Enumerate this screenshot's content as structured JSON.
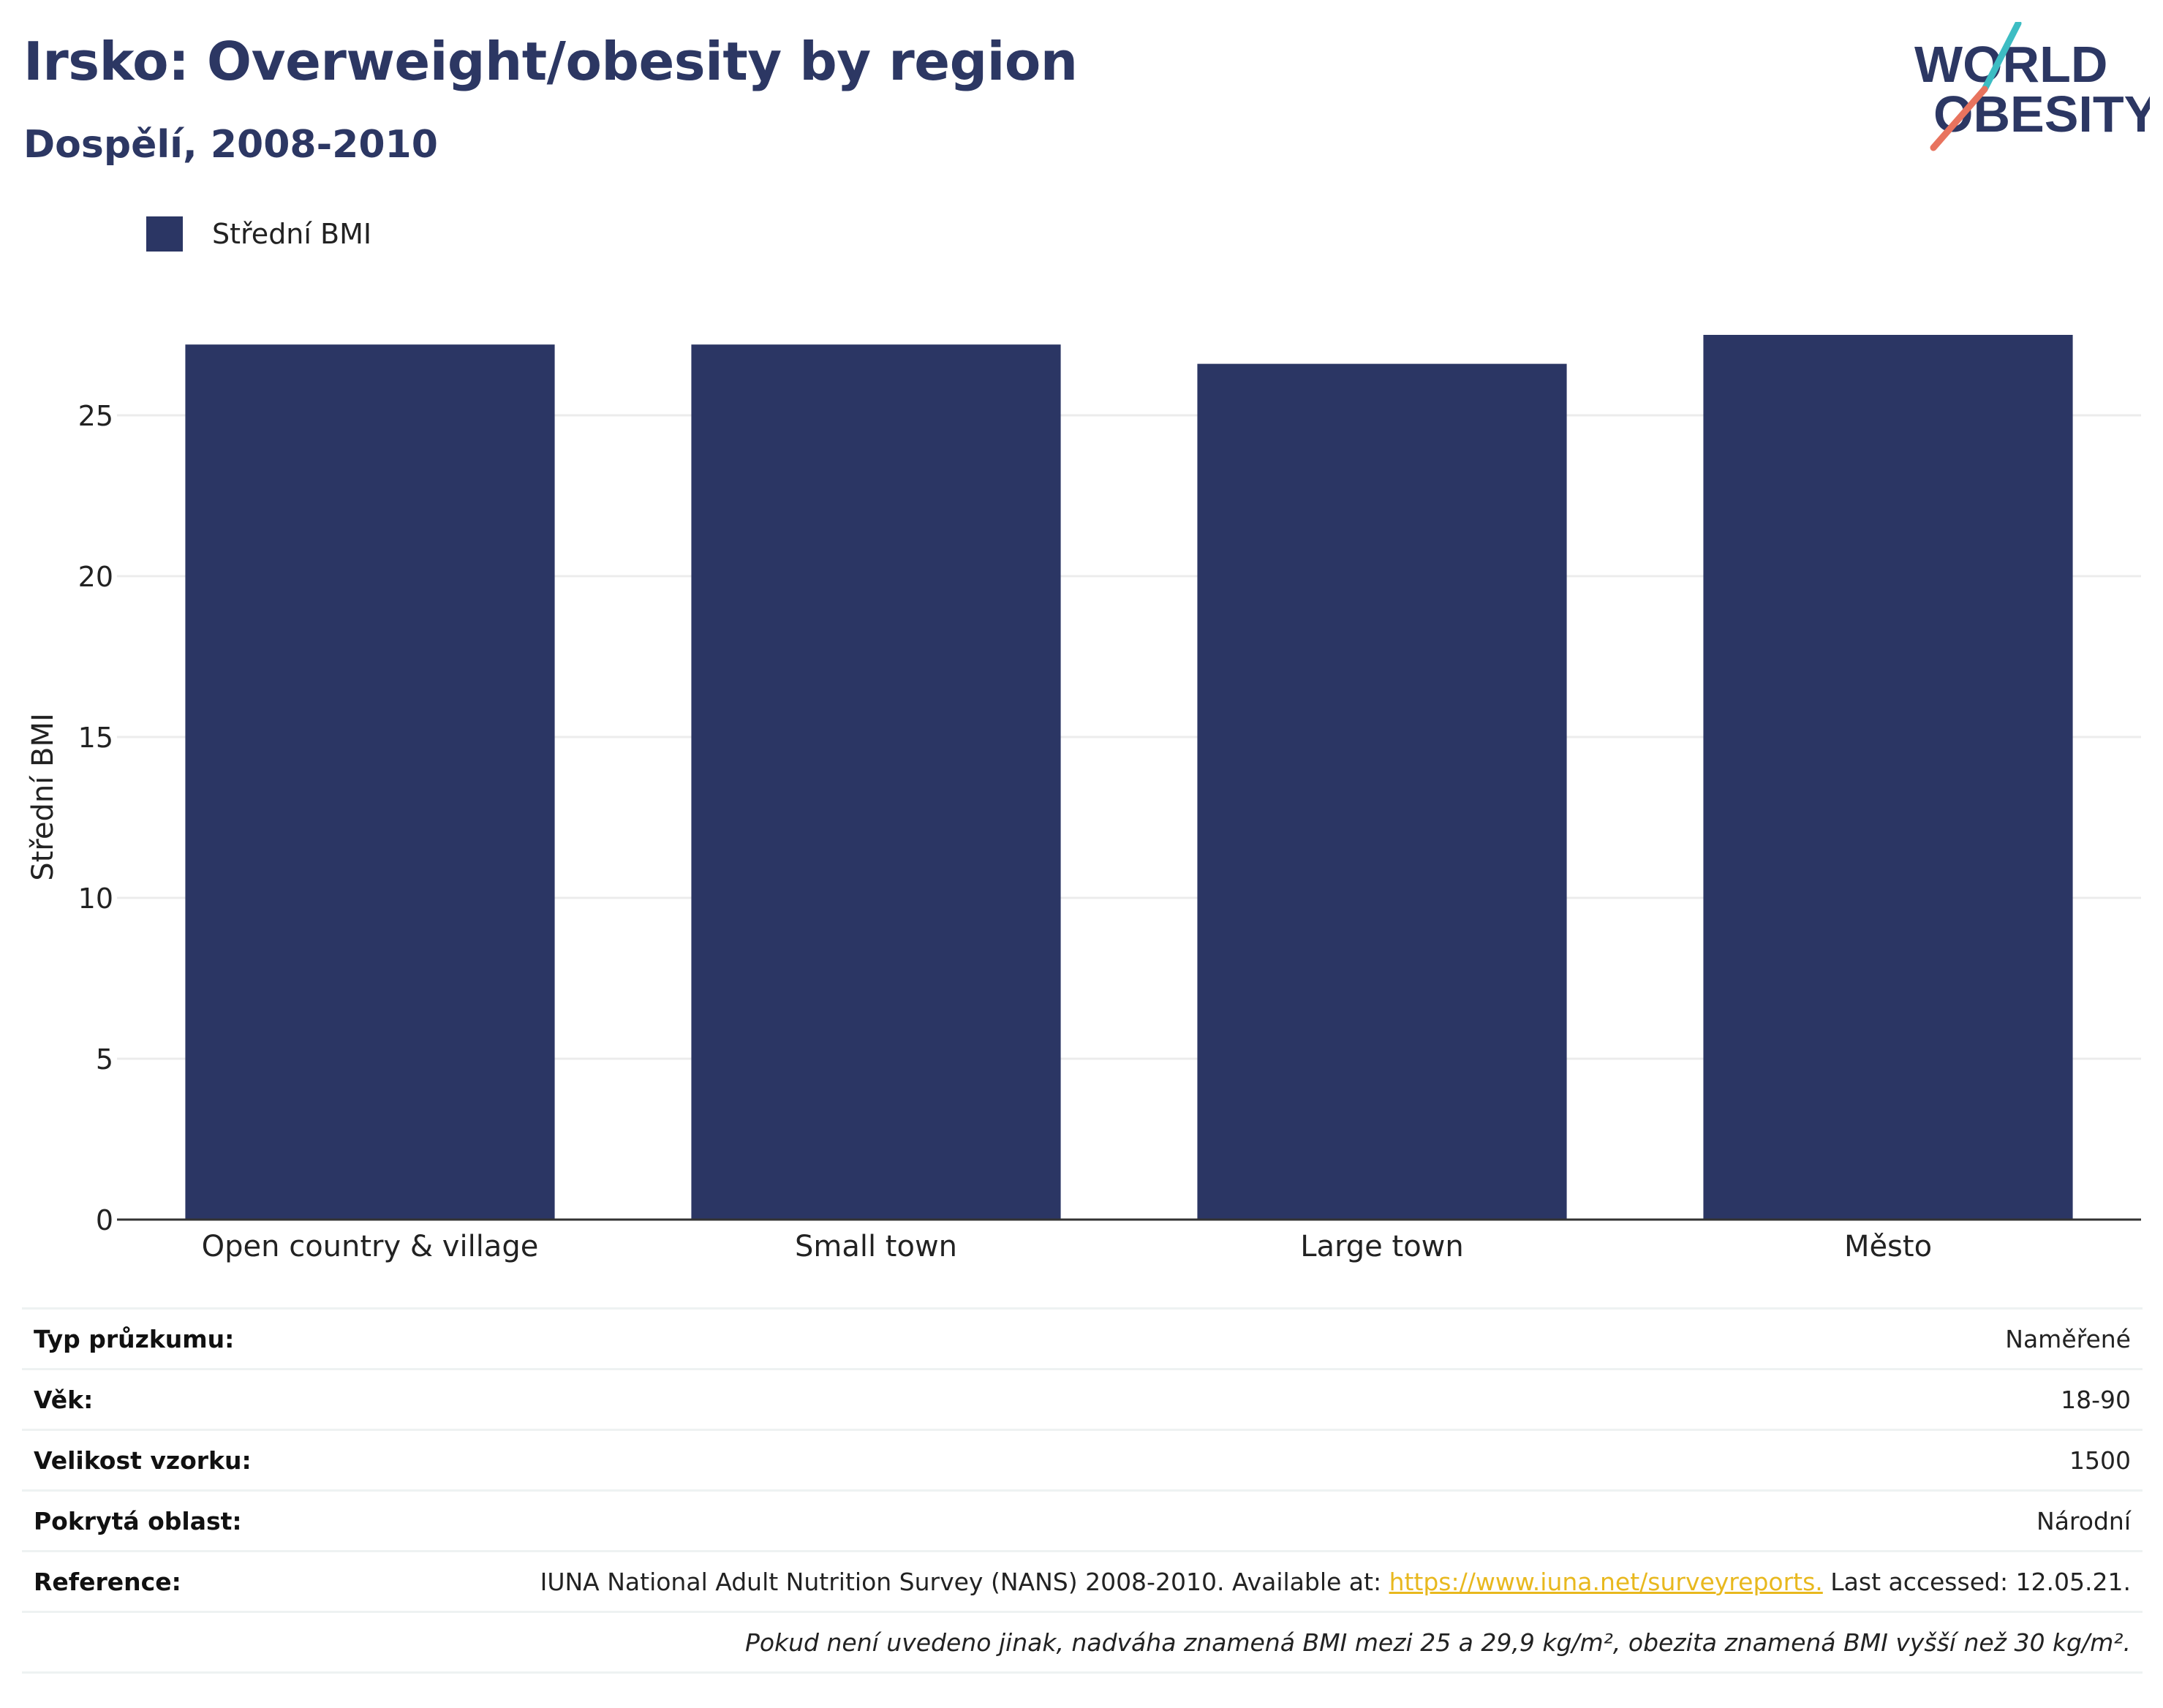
{
  "header": {
    "title": "Irsko: Overweight/obesity by region",
    "subtitle": "Dospělí, 2008-2010"
  },
  "logo": {
    "line1": "WORLD",
    "line2": "OBESITY"
  },
  "legend": {
    "label": "Střední BMI",
    "color": "#2b3664"
  },
  "chart_data": {
    "type": "bar",
    "title": "Irsko: Overweight/obesity by region",
    "subtitle": "Dospělí, 2008-2010",
    "categories": [
      "Open country & village",
      "Small town",
      "Large town",
      "Město"
    ],
    "series": [
      {
        "name": "Střední BMI",
        "values": [
          27.2,
          27.2,
          26.6,
          27.5
        ],
        "color": "#2b3664"
      }
    ],
    "xlabel": "",
    "ylabel": "Střední BMI",
    "ylim": [
      0,
      29
    ],
    "yticks": [
      0,
      5,
      10,
      15,
      20,
      25
    ],
    "grid": true,
    "legend_position": "top-left"
  },
  "info": {
    "survey_type": {
      "label": "Typ průzkumu:",
      "value": "Naměřené"
    },
    "age": {
      "label": "Věk:",
      "value": "18-90"
    },
    "sample_size": {
      "label": "Velikost vzorku:",
      "value": "1500"
    },
    "area": {
      "label": "Pokrytá oblast:",
      "value": "Národní"
    },
    "reference": {
      "label": "Reference:",
      "text_before": "IUNA National Adult Nutrition Survey (NANS) 2008-2010. Available at: ",
      "link": "https://www.iuna.net/surveyreports.",
      "text_after": " Last accessed: 12.05.21."
    },
    "note": "Pokud není uvedeno jinak, nadváha znamená BMI mezi 25 a 29,9 kg/m², obezita znamená BMI vyšší než 30 kg/m²."
  },
  "colors": {
    "navy": "#2c3763",
    "bar": "#2b3664",
    "logo_teal": "#3dbdc3",
    "logo_coral": "#e8735e",
    "link": "#e8b81e"
  }
}
